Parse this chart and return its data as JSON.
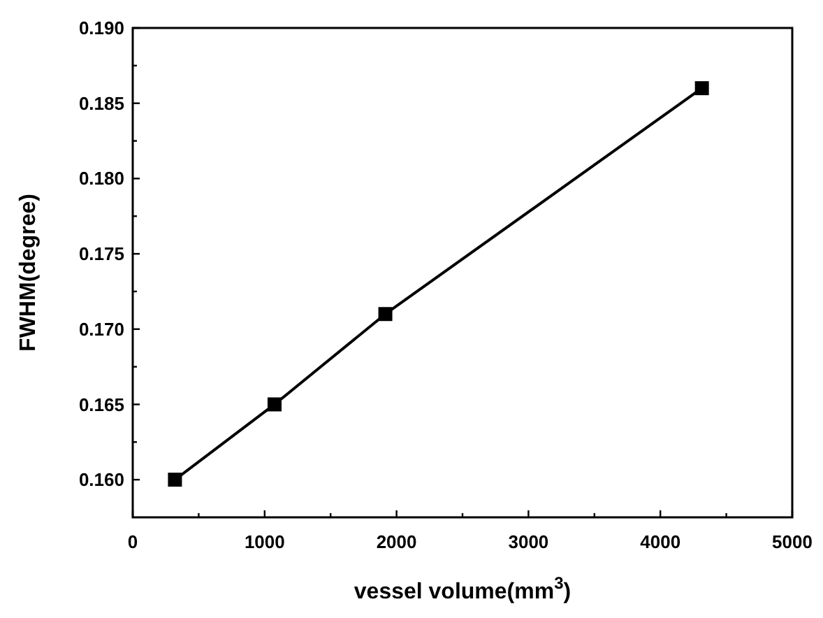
{
  "chart_data": {
    "type": "line",
    "xlabel": "vessel volume(mm$^{3}$)",
    "ylabel": "FWHM(degree)",
    "x": [
      320,
      1075,
      1915,
      4315
    ],
    "series": [
      {
        "color": "#000000",
        "values": [
          0.16,
          0.165,
          0.171,
          0.186
        ]
      }
    ],
    "xlim": [
      0,
      5000
    ],
    "xticks": [
      0,
      {
        "value": 500,
        "label": null
      },
      1000,
      {
        "value": 1500,
        "label": null
      },
      2000,
      {
        "value": 2500,
        "label": null
      },
      3000,
      {
        "value": 3500,
        "label": null
      },
      4000,
      {
        "value": 4500,
        "label": null
      },
      5000
    ],
    "ylim": [
      0.1575,
      0.19
    ],
    "yticks": [
      {
        "value": 0.16,
        "label": "0.160"
      },
      {
        "value": 0.1625,
        "label": null
      },
      {
        "value": 0.165,
        "label": "0.165"
      },
      {
        "value": 0.1675,
        "label": null
      },
      {
        "value": 0.17,
        "label": "0.170"
      },
      {
        "value": 0.1725,
        "label": null
      },
      {
        "value": 0.175,
        "label": "0.175"
      },
      {
        "value": 0.1775,
        "label": null
      },
      {
        "value": 0.18,
        "label": "0.180"
      },
      {
        "value": 0.1825,
        "label": null
      },
      {
        "value": 0.185,
        "label": "0.185"
      },
      {
        "value": 0.1875,
        "label": null
      },
      {
        "value": 0.19,
        "label": "0.190"
      }
    ],
    "marker": "square",
    "line_style": "solid"
  }
}
